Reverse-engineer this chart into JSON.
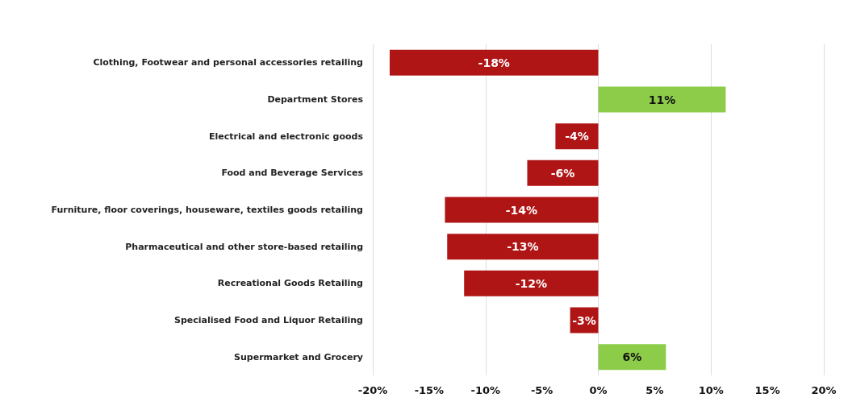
{
  "chart_data": {
    "type": "bar",
    "orientation": "horizontal",
    "categories": [
      "Clothing, Footwear and personal accessories retailing",
      "Department Stores",
      "Electrical and electronic goods",
      "Food and Beverage Services",
      "Furniture, floor coverings, houseware, textiles goods retailing",
      "Pharmaceutical and other store-based retailing",
      "Recreational Goods Retailing",
      "Specialised Food and Liquor Retailing",
      "Supermarket and Grocery"
    ],
    "values": [
      -18.5,
      11.3,
      -3.8,
      -6.3,
      -13.6,
      -13.4,
      -11.9,
      -2.5,
      6.0
    ],
    "colors": [
      "#b01516",
      "#8ccc48",
      "#b01516",
      "#b01516",
      "#b01516",
      "#b01516",
      "#b01516",
      "#b01516",
      "#8ccc48"
    ],
    "value_labels": [
      "-18%",
      "11%",
      "-4%",
      "-6%",
      "-14%",
      "-13%",
      "-12%",
      "-3%",
      "6%"
    ],
    "xlim": [
      -20,
      20
    ],
    "xticks": [
      {
        "value": -20,
        "label": "-20%"
      },
      {
        "value": -15,
        "label": "-15%"
      },
      {
        "value": -10,
        "label": "-10%"
      },
      {
        "value": -5,
        "label": "-5%"
      },
      {
        "value": 0,
        "label": "0%"
      },
      {
        "value": 5,
        "label": "5%"
      },
      {
        "value": 10,
        "label": "10%"
      },
      {
        "value": 15,
        "label": "15%"
      },
      {
        "value": 20,
        "label": "20%"
      }
    ],
    "grid": "x"
  }
}
